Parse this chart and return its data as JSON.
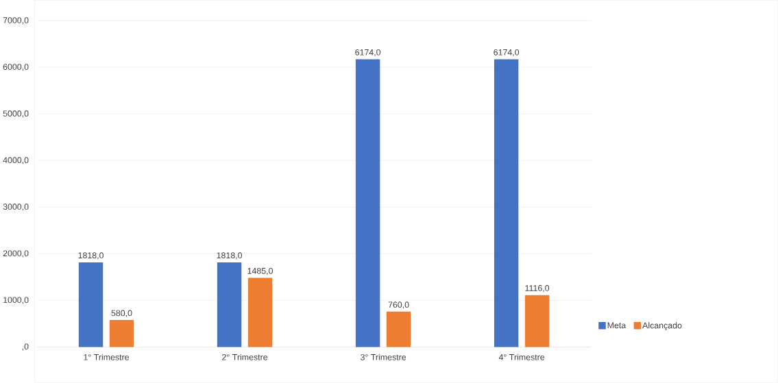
{
  "chart_data": {
    "type": "bar",
    "categories": [
      "1° Trimestre",
      "2° Trimestre",
      "3° Trimestre",
      "4° Trimestre"
    ],
    "series": [
      {
        "name": "Meta",
        "color": "#4472c4",
        "values": [
          1818,
          1818,
          6174,
          6174
        ],
        "value_labels": [
          "1818,0",
          "1818,0",
          "6174,0",
          "6174,0"
        ]
      },
      {
        "name": "Alcançado",
        "color": "#ed7d31",
        "values": [
          580,
          1485,
          760,
          1116
        ],
        "value_labels": [
          "580,0",
          "1485,0",
          "760,0",
          "1116,0"
        ]
      }
    ],
    "ylim": [
      0,
      7000
    ],
    "yticks": [
      {
        "value": 0,
        "label": ",0"
      },
      {
        "value": 1000,
        "label": "1000,0"
      },
      {
        "value": 2000,
        "label": "2000,0"
      },
      {
        "value": 3000,
        "label": "3000,0"
      },
      {
        "value": 4000,
        "label": "4000,0"
      },
      {
        "value": 5000,
        "label": "5000,0"
      },
      {
        "value": 6000,
        "label": "6000,0"
      },
      {
        "value": 7000,
        "label": "7000,0"
      }
    ],
    "grid": "y",
    "legend": "right"
  }
}
